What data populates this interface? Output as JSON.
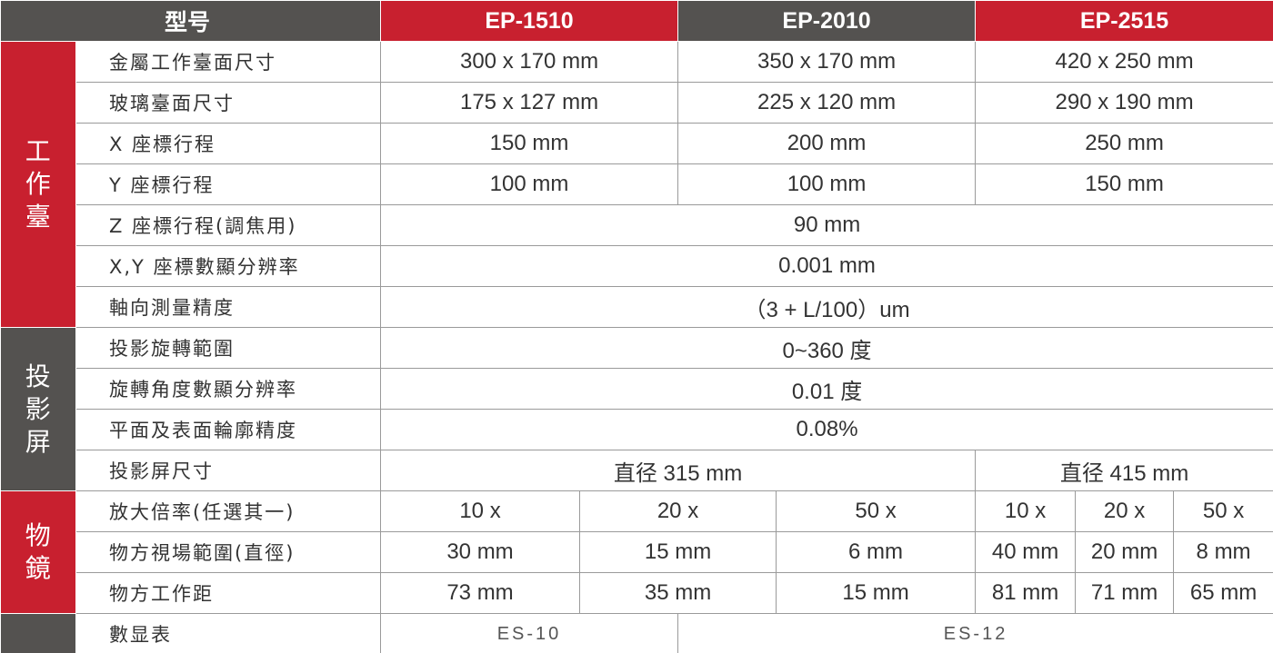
{
  "header": {
    "model": "型号",
    "models": [
      "EP-1510",
      "EP-2010",
      "EP-2515"
    ]
  },
  "groups": [
    "工作臺",
    "投影屏",
    "物鏡"
  ],
  "rows": [
    {
      "label": "金屬工作臺面尺寸",
      "cells": [
        "300 x 170 mm",
        "350 x 170 mm",
        "420 x 250 mm"
      ]
    },
    {
      "label": "玻璃臺面尺寸",
      "cells": [
        "175 x 127 mm",
        "225 x 120 mm",
        "290 x 190 mm"
      ]
    },
    {
      "label": "X 座標行程",
      "cells": [
        "150 mm",
        "200 mm",
        "250 mm"
      ]
    },
    {
      "label": "Y 座標行程",
      "cells": [
        "100 mm",
        "100 mm",
        "150 mm"
      ]
    },
    {
      "label": "Z 座標行程(調焦用)",
      "cells": [
        "90 mm"
      ]
    },
    {
      "label": "X,Y 座標數顯分辨率",
      "cells": [
        "0.001 mm"
      ]
    },
    {
      "label": "軸向測量精度",
      "cells": [
        "（3 + L/100）um"
      ]
    },
    {
      "label": "投影旋轉範圍",
      "cells": [
        "0~360 度"
      ]
    },
    {
      "label": "旋轉角度數顯分辨率",
      "cells": [
        "0.01 度"
      ]
    },
    {
      "label": "平面及表面輪廓精度",
      "cells": [
        "0.08%"
      ]
    },
    {
      "label": "投影屏尺寸",
      "cells": [
        "直径 315 mm",
        "直径 415 mm"
      ]
    },
    {
      "label": "放大倍率(任選其一)",
      "cells": [
        "10 x",
        "20 x",
        "50 x",
        "10 x",
        "20 x",
        "50 x"
      ]
    },
    {
      "label": "物方視場範圍(直徑)",
      "cells": [
        "30 mm",
        "15 mm",
        "6 mm",
        "40 mm",
        "20 mm",
        "8 mm"
      ]
    },
    {
      "label": "物方工作距",
      "cells": [
        "73 mm",
        "35 mm",
        "15 mm",
        "81 mm",
        "71 mm",
        "65 mm"
      ]
    },
    {
      "label": "數显表",
      "cells": [
        "ES-10",
        "ES-12"
      ]
    }
  ]
}
